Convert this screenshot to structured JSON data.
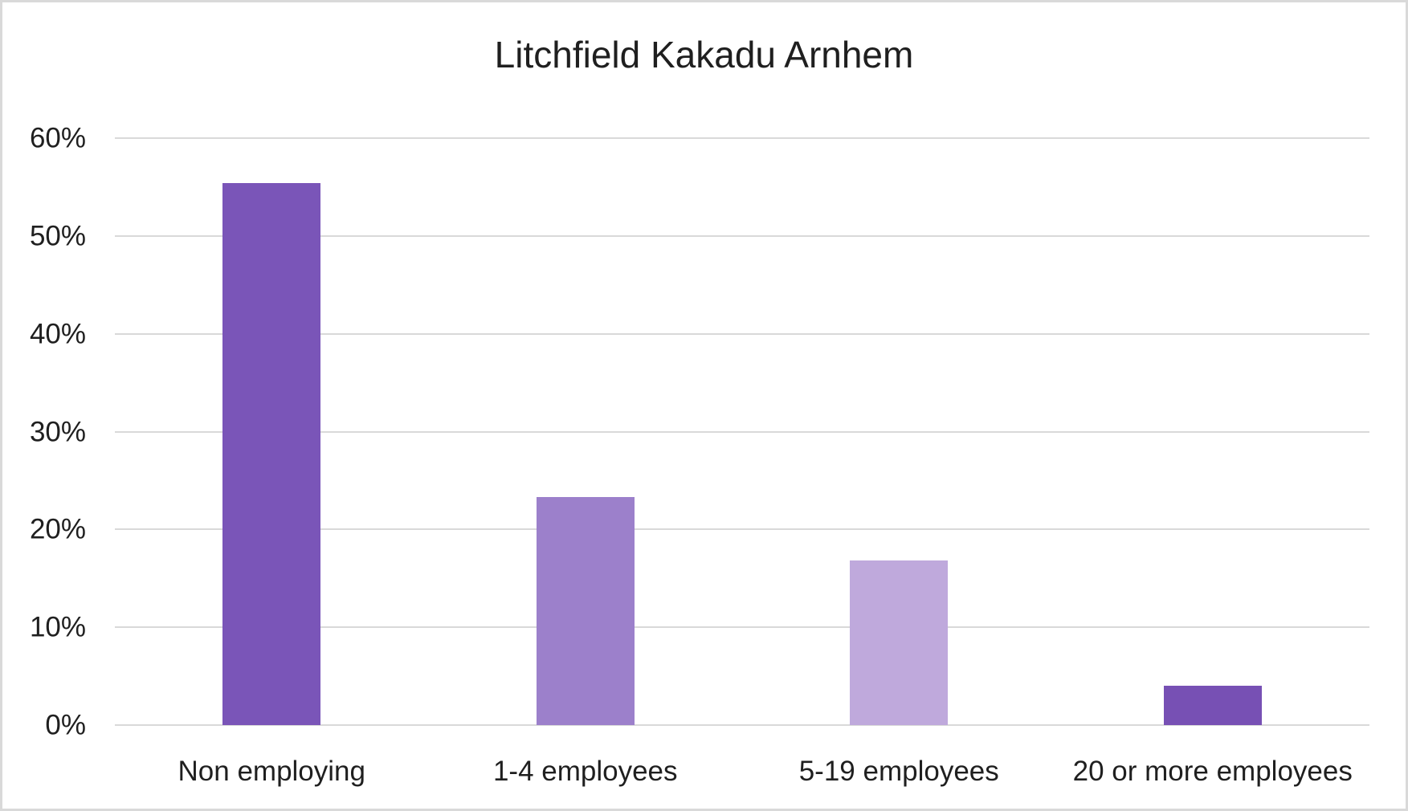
{
  "chart_data": {
    "type": "bar",
    "title": "Litchfield Kakadu Arnhem",
    "categories": [
      "Non employing",
      "1-4 employees",
      "5-19 employees",
      "20 or more employees"
    ],
    "values": [
      55.4,
      23.3,
      16.8,
      4.0
    ],
    "value_unit": "%",
    "bar_colors": [
      "#7A55B8",
      "#9C80CB",
      "#BFA9DC",
      "#7750B4"
    ],
    "xlabel": "",
    "ylabel": "",
    "ylim": [
      0,
      60
    ],
    "yticks": [
      {
        "label": "0%",
        "value": 0
      },
      {
        "label": "10%",
        "value": 10
      },
      {
        "label": "20%",
        "value": 20
      },
      {
        "label": "30%",
        "value": 30
      },
      {
        "label": "40%",
        "value": 40
      },
      {
        "label": "50%",
        "value": 50
      },
      {
        "label": "60%",
        "value": 60
      }
    ],
    "grid": true,
    "gridline_color": "#d9d9d9",
    "background_color": "#ffffff",
    "frame_border_color": "#d9d9d9",
    "legend": "none"
  }
}
